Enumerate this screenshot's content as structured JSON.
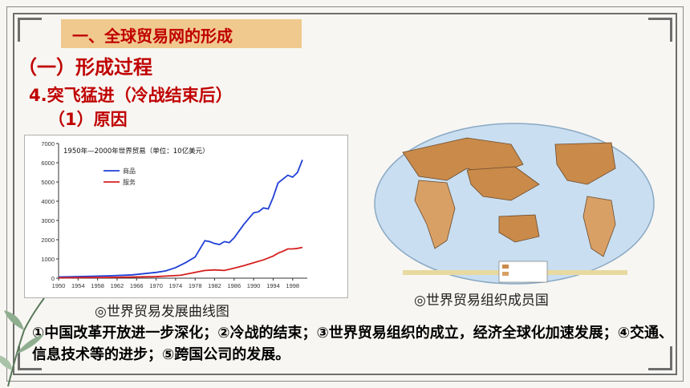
{
  "section": {
    "title": "一、全球贸易网的形成"
  },
  "headings": {
    "h1": "（一）形成过程",
    "h2": "4.突飞猛进（冷战结束后）",
    "h3": "（1）原因"
  },
  "chart_caption": "◎世界贸易发展曲线图",
  "map_caption": "◎世界贸易组织成员国",
  "summary": "①中国改革开放进一步深化；②冷战的结束；③世界贸易组织的成立，经济全球化加速发展；④交通、信息技术等的进步；⑤跨国公司的发展。",
  "colors": {
    "banner": "#f0c98e",
    "heading": "#c00000",
    "goods": "#1f3fd6",
    "services": "#d62020",
    "ocean": "#c9def0",
    "land": "#f2e3a6",
    "member": "#c98a4a"
  },
  "chart_data": {
    "type": "line",
    "title": "1950年—2000年世界贸易（单位：10亿美元）",
    "xlim": [
      1950,
      2001
    ],
    "ylim": [
      0,
      7000
    ],
    "x_ticks": [
      "1950",
      "1954",
      "1958",
      "1962",
      "1966",
      "1970",
      "1974",
      "1978",
      "1982",
      "1986",
      "1990",
      "1994",
      "1998"
    ],
    "y_ticks": [
      "0",
      "1000",
      "2000",
      "3000",
      "4000",
      "5000",
      "6000",
      "7000"
    ],
    "legend_position": "upper-left",
    "series": [
      {
        "name": "商品",
        "x": [
          1950,
          1955,
          1960,
          1965,
          1970,
          1972,
          1974,
          1976,
          1978,
          1980,
          1981,
          1982,
          1983,
          1984,
          1985,
          1986,
          1987,
          1988,
          1989,
          1990,
          1991,
          1992,
          1993,
          1994,
          1995,
          1996,
          1997,
          1998,
          1999,
          2000
        ],
        "y": [
          60,
          90,
          120,
          170,
          300,
          380,
          550,
          800,
          1100,
          1950,
          1900,
          1800,
          1750,
          1900,
          1850,
          2100,
          2450,
          2800,
          3100,
          3400,
          3450,
          3650,
          3600,
          4200,
          4950,
          5150,
          5350,
          5250,
          5500,
          6150
        ]
      },
      {
        "name": "服务",
        "x": [
          1950,
          1960,
          1970,
          1975,
          1980,
          1982,
          1984,
          1986,
          1988,
          1990,
          1992,
          1994,
          1995,
          1996,
          1997,
          1998,
          1999,
          2000
        ],
        "y": [
          20,
          40,
          80,
          150,
          400,
          430,
          400,
          520,
          650,
          800,
          950,
          1150,
          1300,
          1400,
          1520,
          1520,
          1550,
          1600
        ]
      }
    ]
  }
}
